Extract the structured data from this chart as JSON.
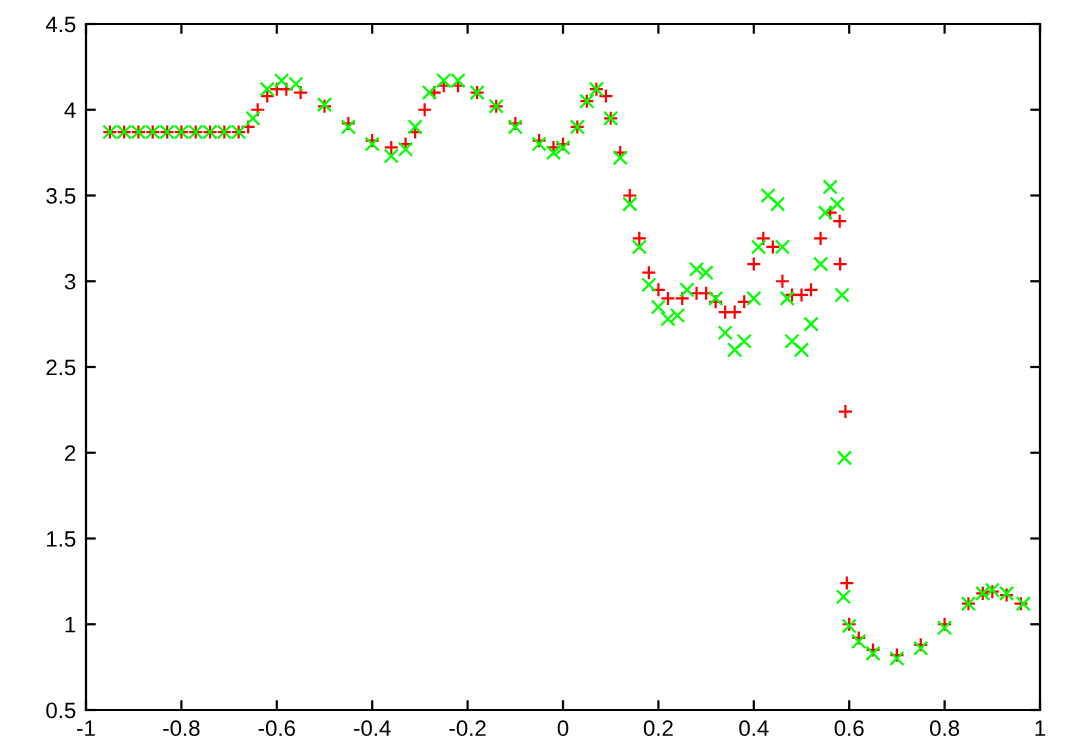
{
  "chart_data": {
    "type": "scatter",
    "xlim": [
      -1,
      1
    ],
    "ylim": [
      0.5,
      4.5
    ],
    "xticks": [
      -1,
      -0.8,
      -0.6,
      -0.4,
      -0.2,
      0,
      0.2,
      0.4,
      0.6,
      0.8,
      1
    ],
    "yticks": [
      0.5,
      1,
      1.5,
      2,
      2.5,
      3,
      3.5,
      4,
      4.5
    ],
    "grid": false,
    "legend": false,
    "series": [
      {
        "color": "#ff0000",
        "marker": "cross",
        "x": [
          -0.95,
          -0.92,
          -0.89,
          -0.86,
          -0.83,
          -0.8,
          -0.77,
          -0.74,
          -0.71,
          -0.68,
          -0.66,
          -0.64,
          -0.62,
          -0.6,
          -0.58,
          -0.55,
          -0.5,
          -0.45,
          -0.4,
          -0.36,
          -0.33,
          -0.31,
          -0.29,
          -0.27,
          -0.25,
          -0.22,
          -0.18,
          -0.14,
          -0.1,
          -0.05,
          -0.02,
          0.0,
          0.03,
          0.05,
          0.07,
          0.09,
          0.1,
          0.12,
          0.14,
          0.16,
          0.18,
          0.2,
          0.22,
          0.25,
          0.28,
          0.3,
          0.32,
          0.34,
          0.36,
          0.38,
          0.4,
          0.42,
          0.44,
          0.46,
          0.48,
          0.5,
          0.52,
          0.54,
          0.56,
          0.58,
          0.581,
          0.592,
          0.595,
          0.6,
          0.62,
          0.65,
          0.7,
          0.75,
          0.8,
          0.85,
          0.88,
          0.9,
          0.93,
          0.96
        ],
        "values": [
          3.87,
          3.87,
          3.87,
          3.87,
          3.87,
          3.87,
          3.87,
          3.87,
          3.87,
          3.87,
          3.9,
          4.0,
          4.08,
          4.12,
          4.12,
          4.1,
          4.02,
          3.92,
          3.82,
          3.78,
          3.8,
          3.87,
          4.0,
          4.1,
          4.14,
          4.14,
          4.1,
          4.02,
          3.92,
          3.82,
          3.78,
          3.8,
          3.9,
          4.05,
          4.12,
          4.08,
          3.95,
          3.75,
          3.5,
          3.25,
          3.05,
          2.95,
          2.9,
          2.9,
          2.93,
          2.93,
          2.88,
          2.82,
          2.82,
          2.88,
          3.1,
          3.25,
          3.2,
          3.0,
          2.92,
          2.92,
          2.95,
          3.25,
          3.4,
          3.35,
          3.1,
          2.24,
          1.24,
          1.0,
          0.92,
          0.85,
          0.82,
          0.88,
          1.0,
          1.12,
          1.18,
          1.19,
          1.17,
          1.12
        ]
      },
      {
        "color": "#00ff00",
        "marker": "x",
        "x": [
          -0.95,
          -0.92,
          -0.89,
          -0.86,
          -0.83,
          -0.8,
          -0.77,
          -0.74,
          -0.71,
          -0.68,
          -0.65,
          -0.62,
          -0.59,
          -0.56,
          -0.5,
          -0.45,
          -0.4,
          -0.36,
          -0.33,
          -0.31,
          -0.28,
          -0.25,
          -0.22,
          -0.18,
          -0.14,
          -0.1,
          -0.05,
          -0.02,
          0.0,
          0.03,
          0.05,
          0.07,
          0.1,
          0.12,
          0.14,
          0.16,
          0.18,
          0.2,
          0.22,
          0.24,
          0.26,
          0.28,
          0.3,
          0.32,
          0.34,
          0.36,
          0.38,
          0.4,
          0.41,
          0.43,
          0.45,
          0.46,
          0.47,
          0.48,
          0.5,
          0.52,
          0.54,
          0.55,
          0.56,
          0.575,
          0.585,
          0.59,
          0.588,
          0.6,
          0.62,
          0.65,
          0.7,
          0.75,
          0.8,
          0.85,
          0.88,
          0.9,
          0.93,
          0.965
        ],
        "values": [
          3.87,
          3.87,
          3.87,
          3.87,
          3.87,
          3.87,
          3.87,
          3.87,
          3.87,
          3.87,
          3.95,
          4.12,
          4.17,
          4.15,
          4.03,
          3.9,
          3.8,
          3.73,
          3.77,
          3.9,
          4.1,
          4.17,
          4.17,
          4.1,
          4.02,
          3.9,
          3.8,
          3.75,
          3.78,
          3.9,
          4.05,
          4.12,
          3.95,
          3.72,
          3.45,
          3.2,
          2.98,
          2.85,
          2.78,
          2.8,
          2.95,
          3.07,
          3.05,
          2.9,
          2.7,
          2.6,
          2.65,
          2.9,
          3.2,
          3.5,
          3.45,
          3.2,
          2.9,
          2.65,
          2.6,
          2.75,
          3.1,
          3.4,
          3.55,
          3.45,
          2.92,
          1.97,
          1.16,
          0.99,
          0.9,
          0.83,
          0.8,
          0.86,
          0.98,
          1.12,
          1.18,
          1.2,
          1.18,
          1.12
        ]
      }
    ]
  }
}
